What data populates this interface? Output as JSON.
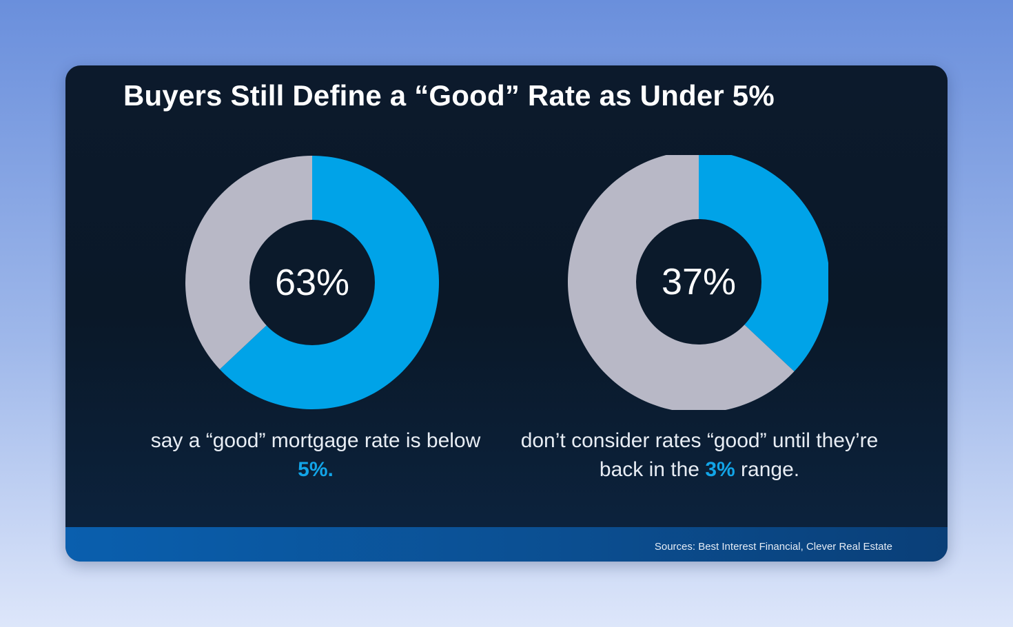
{
  "title": "Buyers Still Define a “Good” Rate as Under 5%",
  "colors": {
    "accent": "#00a3e8",
    "remainder": "#b8b8c6",
    "background": "#0b1a2b"
  },
  "chart_data": [
    {
      "type": "pie",
      "title": "",
      "categories": [
        "Good rate is below 5%",
        "Other"
      ],
      "values": [
        63,
        37
      ],
      "center_label": "63%",
      "caption": {
        "before": "say a “good” mortgage rate is below",
        "highlight": "5%.",
        "after": ""
      }
    },
    {
      "type": "pie",
      "title": "",
      "categories": [
        "Good only in 3% range",
        "Other"
      ],
      "values": [
        37,
        63
      ],
      "center_label": "37%",
      "caption": {
        "before": "don’t consider rates “good” until they’re back in the",
        "highlight": "3%",
        "after": "range."
      }
    }
  ],
  "footer": {
    "sources": "Sources: Best Interest Financial, Clever Real Estate"
  }
}
